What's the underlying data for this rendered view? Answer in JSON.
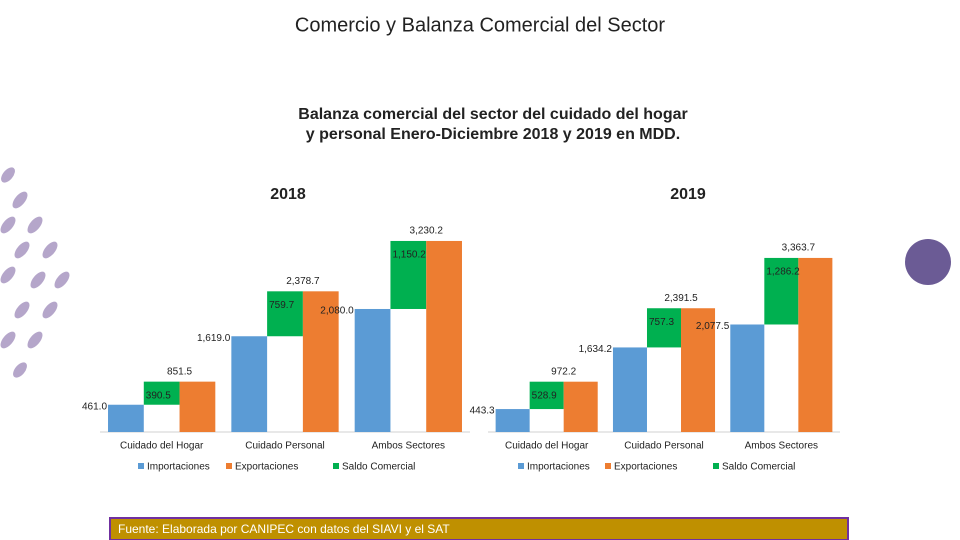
{
  "title": "Comercio y Balanza Comercial del Sector",
  "subtitle": [
    "Balanza comercial del sector del cuidado del hogar",
    "y personal Enero-Diciembre 2018 y 2019 en MDD."
  ],
  "source": "Fuente: Elaborada por CANIPEC con datos del SIAVI y el SAT",
  "chart_data": [
    {
      "type": "bar",
      "title": "2018",
      "categories": [
        "Cuidado del Hogar",
        "Cuidado Personal",
        "Ambos Sectores"
      ],
      "ylim": [
        0,
        3500
      ],
      "series": [
        {
          "name": "Importaciones",
          "color": "#5b9bd5",
          "values": [
            461.0,
            1619.0,
            2080.0
          ],
          "value_labels": [
            "461.0",
            "1,619.0",
            "2,080.0"
          ]
        },
        {
          "name": "Saldo Comercial",
          "color": "#00b050",
          "values": [
            390.5,
            759.7,
            1150.2
          ],
          "value_labels": [
            "390.5",
            "759.7",
            "1,150.2"
          ]
        },
        {
          "name": "Exportaciones",
          "color": "#ed7d31",
          "values": [
            851.5,
            2378.7,
            3230.2
          ],
          "value_labels": [
            "851.5",
            "2,378.7",
            "3,230.2"
          ]
        }
      ]
    },
    {
      "type": "bar",
      "title": "2019",
      "categories": [
        "Cuidado del Hogar",
        "Cuidado Personal",
        "Ambos Sectores"
      ],
      "ylim": [
        0,
        4000
      ],
      "series": [
        {
          "name": "Importaciones",
          "color": "#5b9bd5",
          "values": [
            443.3,
            1634.2,
            2077.5
          ],
          "value_labels": [
            "443.3",
            "1,634.2",
            "2,077.5"
          ]
        },
        {
          "name": "Saldo Comercial",
          "color": "#00b050",
          "values": [
            528.9,
            757.3,
            1286.2
          ],
          "value_labels": [
            "528.9",
            "757.3",
            "1,286.2"
          ]
        },
        {
          "name": "Exportaciones",
          "color": "#ed7d31",
          "values": [
            972.2,
            2391.5,
            3363.7
          ],
          "value_labels": [
            "972.2",
            "2,391.5",
            "3,363.7"
          ]
        }
      ]
    }
  ]
}
